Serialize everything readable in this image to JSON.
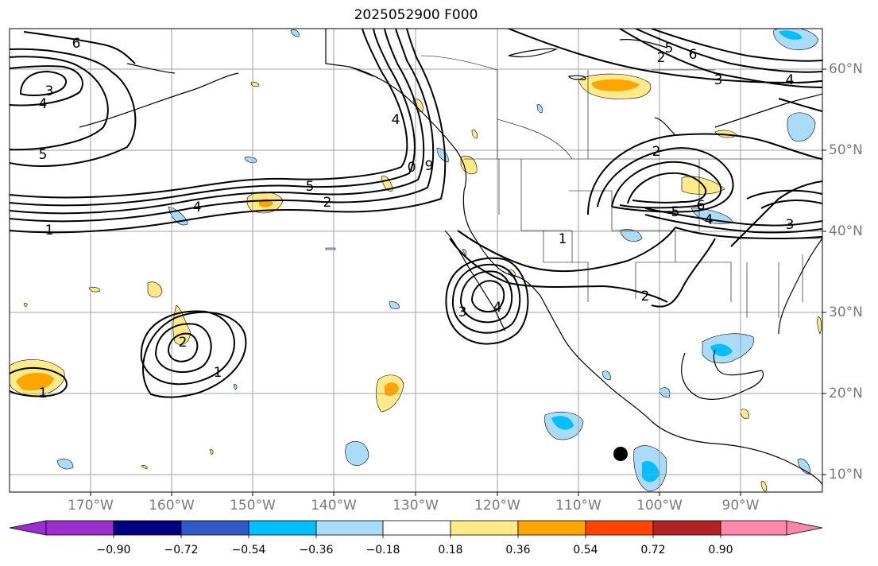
{
  "title": "2025052900 F000",
  "lon_labels": [
    "170°W",
    "160°W",
    "150°W",
    "140°W",
    "130°W",
    "120°W",
    "110°W",
    "100°W",
    "90°W"
  ],
  "lat_labels": [
    "60°N",
    "50°N",
    "40°N",
    "30°N",
    "20°N",
    "10°N"
  ],
  "colorbar": {
    "colors": [
      "#9b30d0",
      "#000080",
      "#3358c8",
      "#00bfff",
      "#aadcfa",
      "#ffffff",
      "#ffea8a",
      "#ffa500",
      "#ff4500",
      "#b22222",
      "#ff88aa"
    ],
    "tick_labels": [
      "−0.90",
      "−0.72",
      "−0.54",
      "−0.36",
      "−0.18",
      "0.18",
      "0.36",
      "0.54",
      "0.72",
      "0.90"
    ]
  },
  "contour_labels": {
    "nw_6": "6",
    "nw_3": "3",
    "nw_4": "4",
    "nw_5": "5",
    "pac_5": "5",
    "pac_2": "2",
    "pac_4": "4",
    "pac_1": "1",
    "ne_5": "5",
    "ne_6": "6",
    "ne_3": "3",
    "ne_4": "4",
    "ne_2": "2",
    "plains_2": "2",
    "plains_5": "5",
    "plains_6": "6",
    "plains_4": "4",
    "plains_3": "3",
    "sw_1": "1",
    "sw_2": "2",
    "baja_3": "3",
    "baja_4": "4",
    "low_2": "2",
    "low_1": "1",
    "west_1": "1",
    "coast_0": "0",
    "coast_9": "9",
    "coast_4": "4"
  },
  "marker": "storm-position"
}
